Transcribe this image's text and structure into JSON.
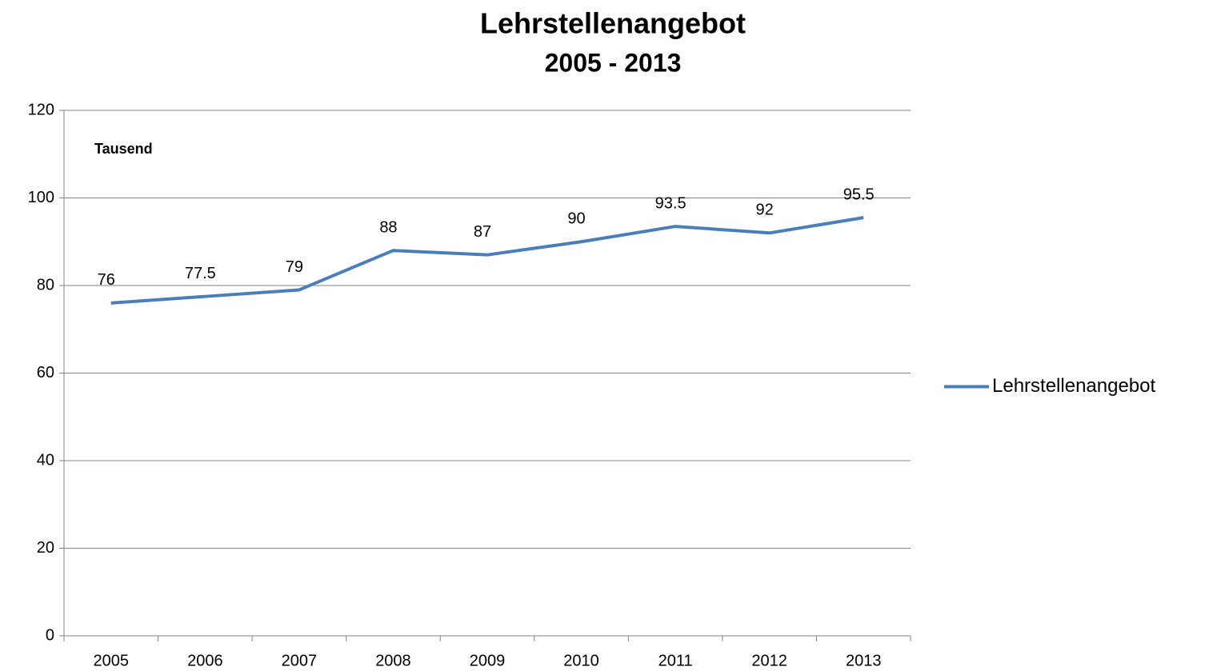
{
  "chart_data": {
    "type": "line",
    "title": "Lehrstellenangebot",
    "subtitle": "2005 - 2013",
    "annotation": "Tausend",
    "categories": [
      "2005",
      "2006",
      "2007",
      "2008",
      "2009",
      "2010",
      "2011",
      "2012",
      "2013"
    ],
    "series": [
      {
        "name": "Lehrstellenangebot",
        "color": "#4a7ebb",
        "values": [
          76,
          77.5,
          79,
          88,
          87,
          90,
          93.5,
          92,
          95.5
        ]
      }
    ],
    "ylim": [
      0,
      120
    ],
    "yticks": [
      0,
      20,
      40,
      60,
      80,
      100,
      120
    ],
    "grid": true,
    "legend": "right"
  }
}
